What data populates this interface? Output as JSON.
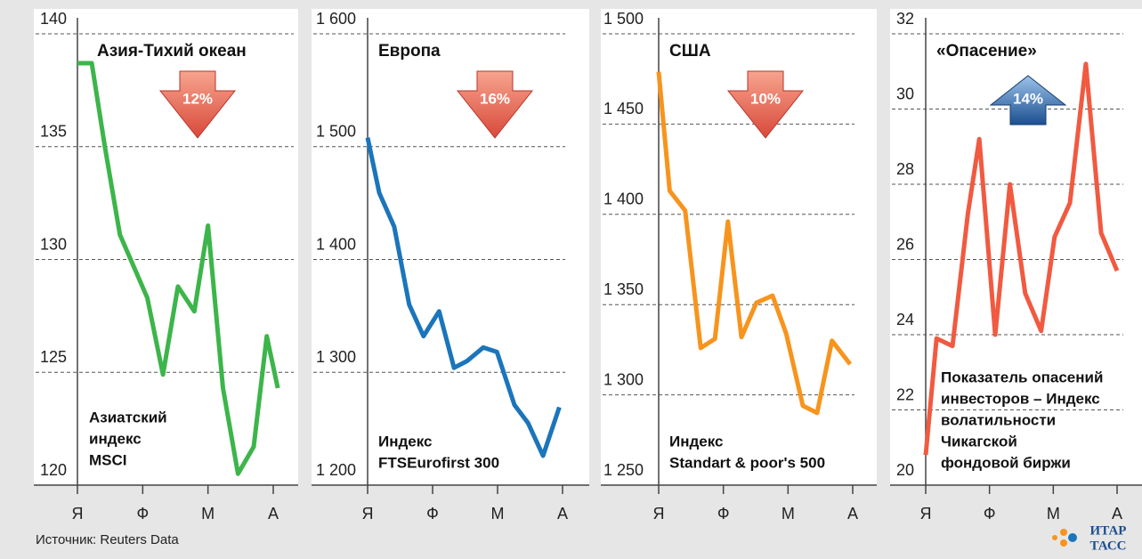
{
  "chart_data": [
    {
      "type": "line",
      "title": "Азия-Тихий океан",
      "badge": "12%",
      "direction": "down",
      "note": [
        "Азиатский",
        "индекс",
        "MSCI"
      ],
      "color": "#3cb54a",
      "x": [
        0,
        0.22,
        0.42,
        0.65,
        0.86,
        1.07,
        1.31,
        1.54,
        1.79,
        2.0,
        2.23,
        2.46,
        2.7,
        2.9,
        3.07
      ],
      "values": [
        138.7,
        138.7,
        135,
        131.1,
        129.7,
        128.3,
        124.9,
        128.8,
        127.7,
        131.5,
        124.3,
        120.5,
        121.7,
        126.6,
        124.3
      ],
      "xlim": [
        0,
        3
      ],
      "xticks": [
        {
          "value": 0,
          "label": "Я"
        },
        {
          "value": 1,
          "label": "Ф"
        },
        {
          "value": 2,
          "label": "М"
        },
        {
          "value": 3,
          "label": "А"
        }
      ],
      "ylim": [
        120,
        140
      ],
      "yticks": [
        120,
        125,
        130,
        135,
        140
      ]
    },
    {
      "type": "line",
      "title": "Европа",
      "badge": "16%",
      "direction": "down",
      "note": [
        "Индекс",
        "FTSEurofirst 300"
      ],
      "color": "#1b75bb",
      "x": [
        0,
        0.18,
        0.41,
        0.64,
        0.86,
        1.1,
        1.33,
        1.53,
        1.78,
        1.99,
        2.26,
        2.47,
        2.7,
        2.95
      ],
      "values": [
        1508,
        1459,
        1429,
        1360,
        1332,
        1354,
        1304,
        1310,
        1322,
        1318,
        1271,
        1255,
        1226,
        1269
      ],
      "xlim": [
        0,
        3
      ],
      "xticks": [
        {
          "value": 0,
          "label": "Я"
        },
        {
          "value": 1,
          "label": "Ф"
        },
        {
          "value": 2,
          "label": "М"
        },
        {
          "value": 3,
          "label": "А"
        }
      ],
      "ylim": [
        1200,
        1600
      ],
      "yticks": [
        {
          "value": 1200,
          "label": "1 200"
        },
        {
          "value": 1300,
          "label": "1 300"
        },
        {
          "value": 1400,
          "label": "1 400"
        },
        {
          "value": 1500,
          "label": "1 500"
        },
        {
          "value": 1600,
          "label": "1 600"
        }
      ]
    },
    {
      "type": "line",
      "title": "США",
      "badge": "10%",
      "direction": "down",
      "note": [
        "Индекс",
        "Standart & poor's 500"
      ],
      "color": "#f7941d",
      "x": [
        0,
        0.17,
        0.41,
        0.65,
        0.87,
        1.07,
        1.28,
        1.51,
        1.76,
        1.97,
        2.23,
        2.45,
        2.68,
        2.96
      ],
      "values": [
        1479,
        1413,
        1402,
        1326,
        1331,
        1396,
        1332,
        1351,
        1355,
        1334,
        1294,
        1290,
        1330,
        1317
      ],
      "xlim": [
        0,
        3
      ],
      "xticks": [
        {
          "value": 0,
          "label": "Я"
        },
        {
          "value": 1,
          "label": "Ф"
        },
        {
          "value": 2,
          "label": "М"
        },
        {
          "value": 3,
          "label": "А"
        }
      ],
      "ylim": [
        1250,
        1500
      ],
      "yticks": [
        {
          "value": 1250,
          "label": "1 250"
        },
        {
          "value": 1300,
          "label": "1 300"
        },
        {
          "value": 1350,
          "label": "1 350"
        },
        {
          "value": 1400,
          "label": "1 400"
        },
        {
          "value": 1450,
          "label": "1 450"
        },
        {
          "value": 1500,
          "label": "1 500"
        }
      ]
    },
    {
      "type": "line",
      "title": "«Опасение»",
      "badge": "14%",
      "direction": "up",
      "note": [
        "Показатель опасений",
        "инвесторов – Индекс",
        "волатильности",
        "Чикагской",
        "фондовой биржи"
      ],
      "color": "#f15a40",
      "x": [
        0,
        0.17,
        0.42,
        0.66,
        0.84,
        1.09,
        1.32,
        1.56,
        1.81,
        2.02,
        2.26,
        2.51,
        2.75,
        3.0
      ],
      "values": [
        20.8,
        23.9,
        23.7,
        27.2,
        29.2,
        24.0,
        28.0,
        25.1,
        24.1,
        26.6,
        27.5,
        31.2,
        26.7,
        25.7
      ],
      "xlim": [
        0,
        3
      ],
      "xticks": [
        {
          "value": 0,
          "label": "Я"
        },
        {
          "value": 1,
          "label": "Ф"
        },
        {
          "value": 2,
          "label": "М"
        },
        {
          "value": 3,
          "label": "А"
        }
      ],
      "ylim": [
        20,
        32
      ],
      "yticks": [
        20,
        22,
        24,
        26,
        28,
        30,
        32
      ]
    }
  ],
  "source": "Источник: Reuters Data",
  "logo": [
    "ИТАР",
    "ТАСС"
  ]
}
